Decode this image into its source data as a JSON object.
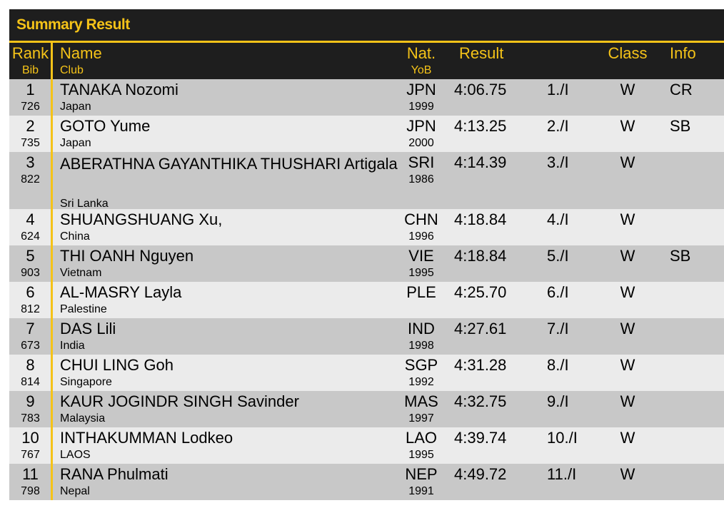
{
  "title": "Summary Result",
  "header": {
    "rank": "Rank",
    "bib": "Bib",
    "name": "Name",
    "club": "Club",
    "nat": "Nat.",
    "yob": "YoB",
    "result": "Result",
    "class": "Class",
    "info": "Info"
  },
  "rows": [
    {
      "rank": "1",
      "bib": "726",
      "name": "TANAKA Nozomi",
      "club": "Japan",
      "nat": "JPN",
      "yob": "1999",
      "result": "4:06.75",
      "place": "1./I",
      "class": "W",
      "info": "CR"
    },
    {
      "rank": "2",
      "bib": "735",
      "name": "GOTO Yume",
      "club": "Japan",
      "nat": "JPN",
      "yob": "2000",
      "result": "4:13.25",
      "place": "2./I",
      "class": "W",
      "info": "SB"
    },
    {
      "rank": "3",
      "bib": "822",
      "name": "ABERATHNA GAYANTHIKA THUSHARI Artigala",
      "club": "Sri Lanka",
      "nat": "SRI",
      "yob": "1986",
      "result": "4:14.39",
      "place": "3./I",
      "class": "W",
      "info": ""
    },
    {
      "rank": "4",
      "bib": "624",
      "name": "SHUANGSHUANG Xu,",
      "club": "China",
      "nat": "CHN",
      "yob": "1996",
      "result": "4:18.84",
      "place": "4./I",
      "class": "W",
      "info": ""
    },
    {
      "rank": "5",
      "bib": "903",
      "name": "THI OANH Nguyen",
      "club": "Vietnam",
      "nat": "VIE",
      "yob": "1995",
      "result": "4:18.84",
      "place": "5./I",
      "class": "W",
      "info": "SB"
    },
    {
      "rank": "6",
      "bib": "812",
      "name": "AL-MASRY Layla",
      "club": "Palestine",
      "nat": "PLE",
      "yob": "",
      "result": "4:25.70",
      "place": "6./I",
      "class": "W",
      "info": ""
    },
    {
      "rank": "7",
      "bib": "673",
      "name": "DAS Lili",
      "club": "India",
      "nat": "IND",
      "yob": "1998",
      "result": "4:27.61",
      "place": "7./I",
      "class": "W",
      "info": ""
    },
    {
      "rank": "8",
      "bib": "814",
      "name": "CHUI LING Goh",
      "club": "Singapore",
      "nat": "SGP",
      "yob": "1992",
      "result": "4:31.28",
      "place": "8./I",
      "class": "W",
      "info": ""
    },
    {
      "rank": "9",
      "bib": "783",
      "name": "KAUR JOGINDR SINGH Savinder",
      "club": "Malaysia",
      "nat": "MAS",
      "yob": "1997",
      "result": "4:32.75",
      "place": "9./I",
      "class": "W",
      "info": ""
    },
    {
      "rank": "10",
      "bib": "767",
      "name": "INTHAKUMMAN Lodkeo",
      "club": "LAOS",
      "nat": "LAO",
      "yob": "1995",
      "result": "4:39.74",
      "place": "10./I",
      "class": "W",
      "info": ""
    },
    {
      "rank": "11",
      "bib": "798",
      "name": "RANA Phulmati",
      "club": "Nepal",
      "nat": "NEP",
      "yob": "1991",
      "result": "4:49.72",
      "place": "11./I",
      "class": "W",
      "info": ""
    }
  ],
  "colors": {
    "accent": "#f5c318",
    "header_bg": "#1e1e1e",
    "row_odd": "#c8c8c8",
    "row_even": "#ebebeb"
  }
}
